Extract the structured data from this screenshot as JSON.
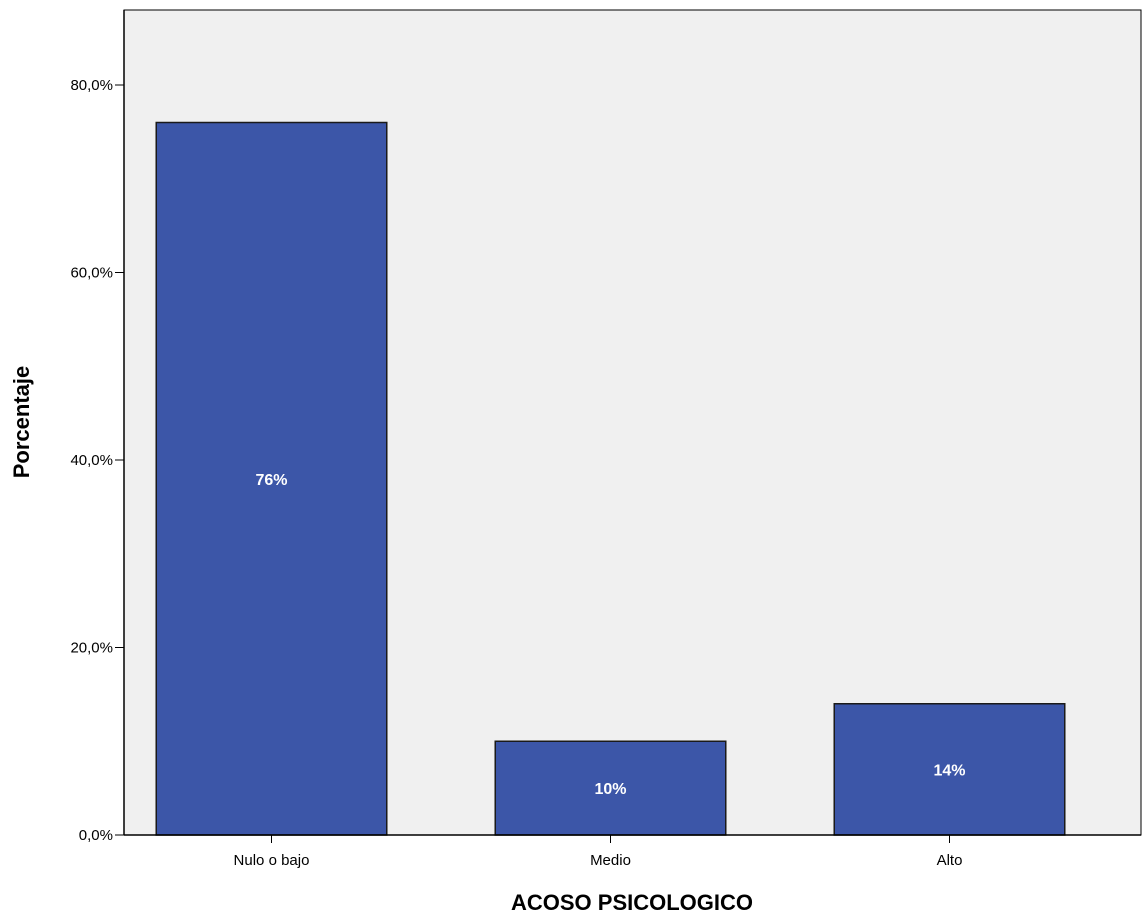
{
  "chart_data": {
    "type": "bar",
    "title": "",
    "xlabel": "ACOSO PSICOLOGICO",
    "ylabel": "Porcentaje",
    "categories": [
      "Nulo o bajo",
      "Medio",
      "Alto"
    ],
    "values": [
      76,
      10,
      14
    ],
    "data_labels": [
      "76%",
      "10%",
      "14%"
    ],
    "ylim": [
      0,
      88
    ],
    "yticks": [
      0,
      20,
      40,
      60,
      80
    ],
    "ytick_labels": [
      "0,0%",
      "20,0%",
      "40,0%",
      "60,0%",
      "80,0%"
    ],
    "grid": false,
    "legend": "none",
    "colors": {
      "bar_fill": "#3c56a8",
      "bar_stroke": "#1a1a1a",
      "plot_background": "#f0f0f0",
      "axis": "#000000",
      "data_label_text": "#ffffff"
    }
  }
}
